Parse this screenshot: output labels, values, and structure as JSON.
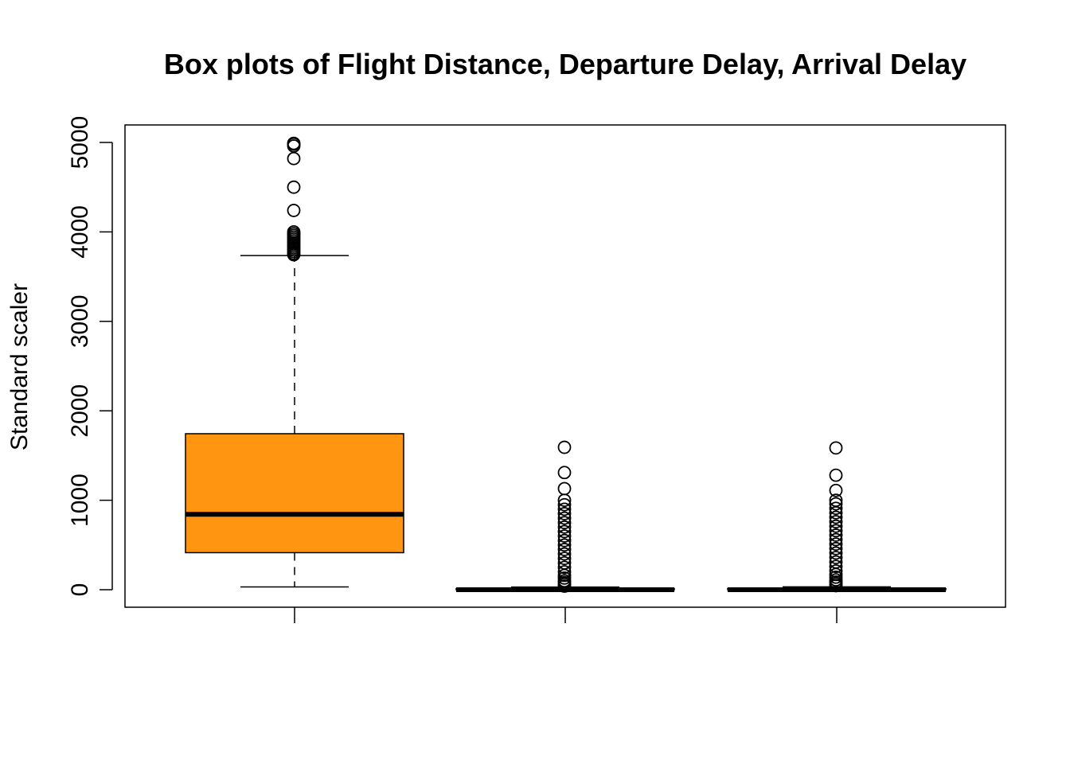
{
  "chart_data": {
    "type": "boxplot",
    "title": "Box plots of Flight Distance, Departure Delay, Arrival Delay",
    "ylabel": "Standard scaler",
    "xlabel": "",
    "ylim": [
      -200,
      5200
    ],
    "yticks": [
      0,
      1000,
      2000,
      3000,
      4000,
      5000
    ],
    "grid": false,
    "box_color": "#FF9510",
    "boxes": [
      {
        "whisker_low": 31,
        "q1": 414,
        "median": 843,
        "q3": 1744,
        "whisker_high": 3736,
        "outliers": [
          3745,
          3760,
          3780,
          3800,
          3820,
          3840,
          3860,
          3880,
          3900,
          3920,
          3940,
          3960,
          3980,
          4000,
          4240,
          4500,
          4820,
          4960,
          4980,
          4990
        ]
      },
      {
        "whisker_low": 0,
        "q1": 0,
        "median": 0,
        "q3": 12,
        "whisker_high": 30,
        "outliers": [
          40,
          60,
          80,
          100,
          130,
          160,
          200,
          250,
          300,
          350,
          400,
          450,
          500,
          550,
          600,
          650,
          700,
          750,
          800,
          850,
          900,
          950,
          1000,
          1130,
          1310,
          1592
        ]
      },
      {
        "whisker_low": 0,
        "q1": 0,
        "median": 0,
        "q3": 13,
        "whisker_high": 32,
        "outliers": [
          45,
          65,
          85,
          110,
          140,
          170,
          210,
          260,
          310,
          360,
          410,
          460,
          510,
          560,
          610,
          660,
          710,
          760,
          810,
          860,
          910,
          960,
          1000,
          1110,
          1280,
          1585
        ]
      }
    ]
  }
}
